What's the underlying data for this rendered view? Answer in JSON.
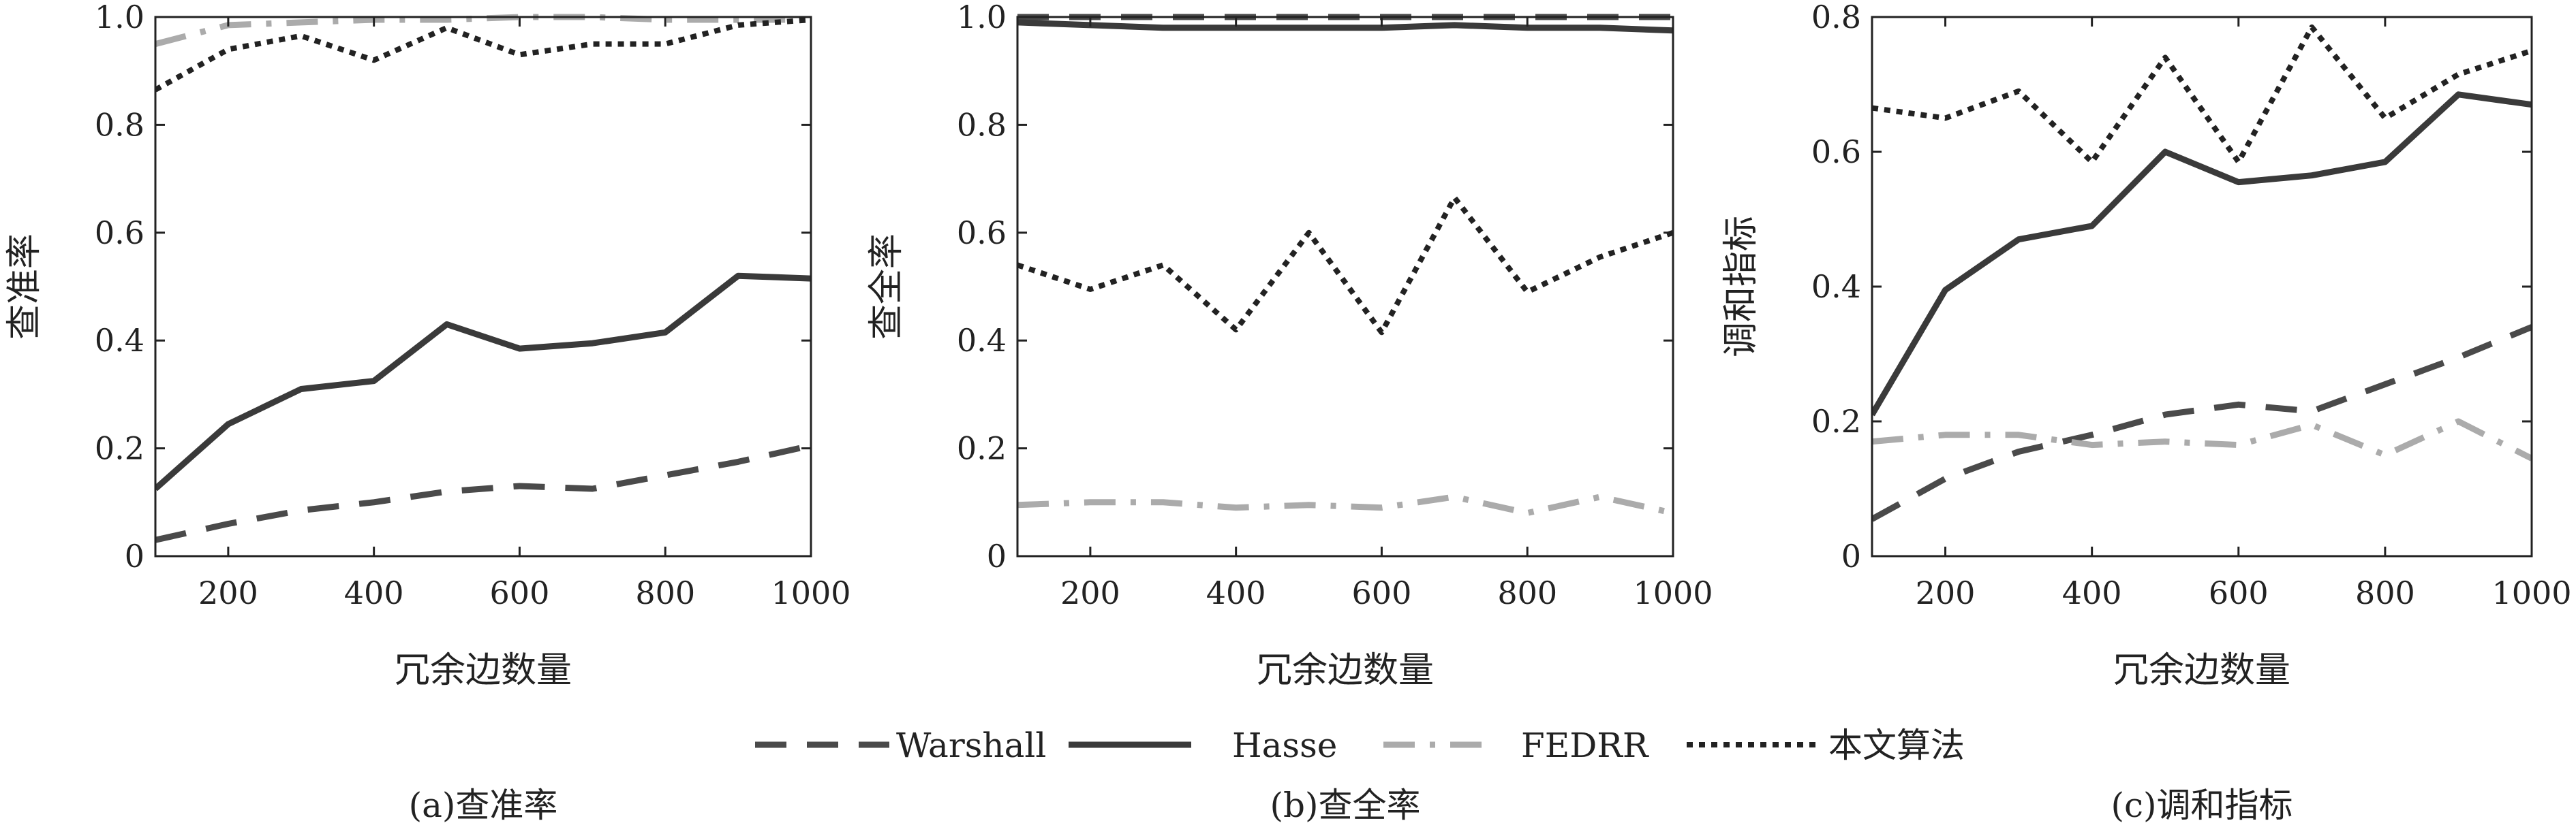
{
  "legend": [
    {
      "name": "Warshall",
      "color": "#4a4a4a",
      "dash": "dashed"
    },
    {
      "name": "Hasse",
      "color": "#3a3a3a",
      "dash": "solid"
    },
    {
      "name": "FEDRR",
      "color": "#ababab",
      "dash": "dashdot"
    },
    {
      "name": "本文算法",
      "color": "#222222",
      "dash": "dotted"
    }
  ],
  "chart_data": [
    {
      "type": "line",
      "caption": "(a)查准率",
      "xlabel": "冗余边数量",
      "ylabel": "查准率",
      "xlim": [
        100,
        1000
      ],
      "ylim": [
        0,
        1.0
      ],
      "x_ticks": [
        200,
        400,
        600,
        800,
        1000
      ],
      "y_ticks": [
        0,
        0.2,
        0.4,
        0.6,
        0.8,
        1.0
      ],
      "y_tick_labels": [
        "0",
        "0.2",
        "0.4",
        "0.6",
        "0.8",
        "1.0"
      ],
      "x": [
        100,
        200,
        300,
        400,
        500,
        600,
        700,
        800,
        900,
        1000
      ],
      "series": [
        {
          "name": "Warshall",
          "values": [
            0.03,
            0.06,
            0.085,
            0.1,
            0.12,
            0.13,
            0.125,
            0.15,
            0.175,
            0.205
          ]
        },
        {
          "name": "Hasse",
          "values": [
            0.125,
            0.245,
            0.31,
            0.325,
            0.43,
            0.385,
            0.395,
            0.415,
            0.52,
            0.515
          ]
        },
        {
          "name": "FEDRR",
          "values": [
            0.95,
            0.985,
            0.99,
            0.995,
            0.995,
            1.0,
            1.0,
            0.995,
            0.995,
            0.995
          ]
        },
        {
          "name": "本文算法",
          "values": [
            0.865,
            0.94,
            0.965,
            0.92,
            0.98,
            0.93,
            0.95,
            0.95,
            0.985,
            0.995
          ]
        }
      ]
    },
    {
      "type": "line",
      "caption": "(b)查全率",
      "xlabel": "冗余边数量",
      "ylabel": "查全率",
      "xlim": [
        100,
        1000
      ],
      "ylim": [
        0,
        1.0
      ],
      "x_ticks": [
        200,
        400,
        600,
        800,
        1000
      ],
      "y_ticks": [
        0,
        0.2,
        0.4,
        0.6,
        0.8,
        1.0
      ],
      "y_tick_labels": [
        "0",
        "0.2",
        "0.4",
        "0.6",
        "0.8",
        "1.0"
      ],
      "x": [
        100,
        200,
        300,
        400,
        500,
        600,
        700,
        800,
        900,
        1000
      ],
      "series": [
        {
          "name": "Warshall",
          "values": [
            1.0,
            1.0,
            1.0,
            1.0,
            1.0,
            1.0,
            1.0,
            1.0,
            1.0,
            1.0
          ]
        },
        {
          "name": "Hasse",
          "values": [
            0.99,
            0.985,
            0.98,
            0.98,
            0.98,
            0.98,
            0.985,
            0.98,
            0.98,
            0.975
          ]
        },
        {
          "name": "FEDRR",
          "values": [
            0.095,
            0.1,
            0.1,
            0.09,
            0.095,
            0.09,
            0.11,
            0.08,
            0.11,
            0.08
          ]
        },
        {
          "name": "本文算法",
          "values": [
            0.54,
            0.495,
            0.54,
            0.42,
            0.6,
            0.415,
            0.665,
            0.49,
            0.555,
            0.6
          ]
        }
      ]
    },
    {
      "type": "line",
      "caption": "(c)调和指标",
      "xlabel": "冗余边数量",
      "ylabel": "调和指标",
      "xlim": [
        100,
        1000
      ],
      "ylim": [
        0,
        0.8
      ],
      "x_ticks": [
        200,
        400,
        600,
        800,
        1000
      ],
      "y_ticks": [
        0,
        0.2,
        0.4,
        0.6,
        0.8
      ],
      "y_tick_labels": [
        "0",
        "0.2",
        "0.4",
        "0.6",
        "0.8"
      ],
      "x": [
        100,
        200,
        300,
        400,
        500,
        600,
        700,
        800,
        900,
        1000
      ],
      "series": [
        {
          "name": "Warshall",
          "values": [
            0.055,
            0.115,
            0.155,
            0.18,
            0.21,
            0.225,
            0.215,
            0.255,
            0.295,
            0.34
          ]
        },
        {
          "name": "Hasse",
          "values": [
            0.21,
            0.395,
            0.47,
            0.49,
            0.6,
            0.555,
            0.565,
            0.585,
            0.685,
            0.67
          ]
        },
        {
          "name": "FEDRR",
          "values": [
            0.17,
            0.18,
            0.18,
            0.165,
            0.17,
            0.165,
            0.195,
            0.15,
            0.2,
            0.145
          ]
        },
        {
          "name": "本文算法",
          "values": [
            0.665,
            0.65,
            0.69,
            0.585,
            0.74,
            0.585,
            0.785,
            0.65,
            0.715,
            0.75
          ]
        }
      ]
    }
  ]
}
